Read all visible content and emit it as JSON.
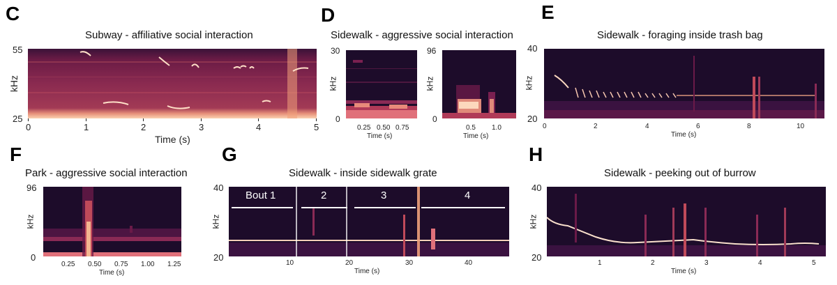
{
  "panels": {
    "C": {
      "letter": "C",
      "title": "Subway - affiliative social interaction",
      "y_label": "kHz",
      "x_label": "Time (s)",
      "y_ticks": [
        "55",
        "25"
      ],
      "x_ticks": [
        "0",
        "1",
        "2",
        "3",
        "4",
        "5"
      ]
    },
    "D": {
      "letter": "D",
      "title": "Sidewalk - aggressive social interaction",
      "y_label": "kHz",
      "x_label": "Time (s)",
      "left_y_ticks": [
        "30",
        "0"
      ],
      "left_x_ticks": [
        "0.25",
        "0.50",
        "0.75"
      ],
      "right_y_ticks": [
        "96",
        "0"
      ],
      "right_x_ticks": [
        "0.5",
        "1.0"
      ]
    },
    "E": {
      "letter": "E",
      "title": "Sidewalk - foraging inside trash bag",
      "y_label": "kHz",
      "x_label": "Time (s)",
      "y_ticks": [
        "40",
        "20"
      ],
      "x_ticks": [
        "0",
        "2",
        "4",
        "6",
        "8",
        "10"
      ]
    },
    "F": {
      "letter": "F",
      "title": "Park - aggressive social interaction",
      "y_label": "kHz",
      "x_label": "Time (s)",
      "y_ticks": [
        "96",
        "0"
      ],
      "x_ticks": [
        "0.25",
        "0.50",
        "0.75",
        "1.00",
        "1.25"
      ]
    },
    "G": {
      "letter": "G",
      "title": "Sidewalk - inside sidewalk grate",
      "y_label": "kHz",
      "x_label": "Time (s)",
      "y_ticks": [
        "40",
        "20"
      ],
      "x_ticks": [
        "10",
        "20",
        "30",
        "40"
      ],
      "bouts": [
        "Bout 1",
        "2",
        "3",
        "4"
      ]
    },
    "H": {
      "letter": "H",
      "title": "Sidewalk - peeking out of burrow",
      "y_label": "kHz",
      "x_label": "Time (s)",
      "y_ticks": [
        "40",
        "20"
      ],
      "x_ticks": [
        "1",
        "2",
        "3",
        "4",
        "5"
      ]
    }
  },
  "colors": {
    "spec_bg": "#1d0c2a",
    "spec_mid": "#7a1f4a",
    "spec_hot": "#f4b690",
    "call": "#fff2e6",
    "bout_line": "#ffffff"
  }
}
